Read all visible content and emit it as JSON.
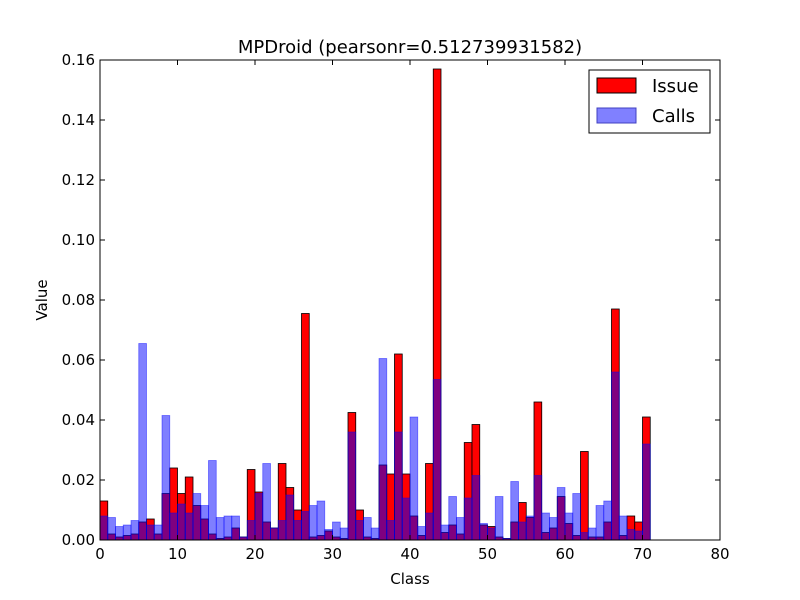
{
  "chart_data": {
    "type": "bar",
    "title": "MPDroid (pearsonr=0.512739931582)",
    "xlabel": "Class",
    "ylabel": "Value",
    "xlim": [
      0,
      80
    ],
    "ylim": [
      0,
      0.16
    ],
    "xticks": [
      "0",
      "10",
      "20",
      "30",
      "40",
      "50",
      "60",
      "70",
      "80"
    ],
    "yticks": [
      "0.00",
      "0.02",
      "0.04",
      "0.06",
      "0.08",
      "0.10",
      "0.12",
      "0.14",
      "0.16"
    ],
    "legend_position": "top-right",
    "x": [
      0,
      1,
      2,
      3,
      4,
      5,
      6,
      7,
      8,
      9,
      10,
      11,
      12,
      13,
      14,
      15,
      16,
      17,
      18,
      19,
      20,
      21,
      22,
      23,
      24,
      25,
      26,
      27,
      28,
      29,
      30,
      31,
      32,
      33,
      34,
      35,
      36,
      37,
      38,
      39,
      40,
      41,
      42,
      43,
      44,
      45,
      46,
      47,
      48,
      49,
      50,
      51,
      52,
      53,
      54,
      55,
      56,
      57,
      58,
      59,
      60,
      61,
      62,
      63,
      64,
      65,
      66,
      67,
      68,
      69,
      70
    ],
    "series": [
      {
        "name": "Issue",
        "color": "#ff0000",
        "values": [
          0.013,
          0.002,
          0.001,
          0.0015,
          0.002,
          0.006,
          0.007,
          0.002,
          0.0155,
          0.024,
          0.0155,
          0.021,
          0.0115,
          0.007,
          0.002,
          0.0005,
          0.001,
          0.004,
          0.001,
          0.0235,
          0.016,
          0.006,
          0.004,
          0.0255,
          0.0175,
          0.01,
          0.0755,
          0.001,
          0.0015,
          0.003,
          0.001,
          0.0005,
          0.0425,
          0.01,
          0.001,
          0.0005,
          0.025,
          0.022,
          0.062,
          0.022,
          0.008,
          0.0015,
          0.0255,
          0.157,
          0.0025,
          0.005,
          0.002,
          0.0325,
          0.0385,
          0.005,
          0.0045,
          0.001,
          0.0005,
          0.006,
          0.0125,
          0.0075,
          0.046,
          0.0025,
          0.004,
          0.0145,
          0.0055,
          0.0015,
          0.0295,
          0.001,
          0.001,
          0.006,
          0.077,
          0.0015,
          0.008,
          0.006,
          0.041
        ]
      },
      {
        "name": "Calls",
        "color": "#8080ff",
        "values": [
          0.008,
          0.0075,
          0.0045,
          0.005,
          0.0065,
          0.0655,
          0.005,
          0.005,
          0.0415,
          0.009,
          0.012,
          0.009,
          0.0155,
          0.0115,
          0.0265,
          0.0075,
          0.008,
          0.008,
          0.001,
          0.0065,
          0.0155,
          0.0255,
          0.004,
          0.0065,
          0.015,
          0.0065,
          0.0095,
          0.0115,
          0.013,
          0.0035,
          0.006,
          0.004,
          0.036,
          0.0065,
          0.0075,
          0.004,
          0.0605,
          0.0065,
          0.036,
          0.014,
          0.041,
          0.0045,
          0.009,
          0.0535,
          0.005,
          0.0145,
          0.0075,
          0.014,
          0.0215,
          0.0055,
          0.004,
          0.0145,
          0.0005,
          0.0195,
          0.006,
          0.008,
          0.0215,
          0.009,
          0.0075,
          0.0175,
          0.009,
          0.0155,
          0.0025,
          0.004,
          0.0115,
          0.013,
          0.056,
          0.008,
          0.0035,
          0.003,
          0.032
        ]
      }
    ],
    "overlap_color": "#800080"
  }
}
